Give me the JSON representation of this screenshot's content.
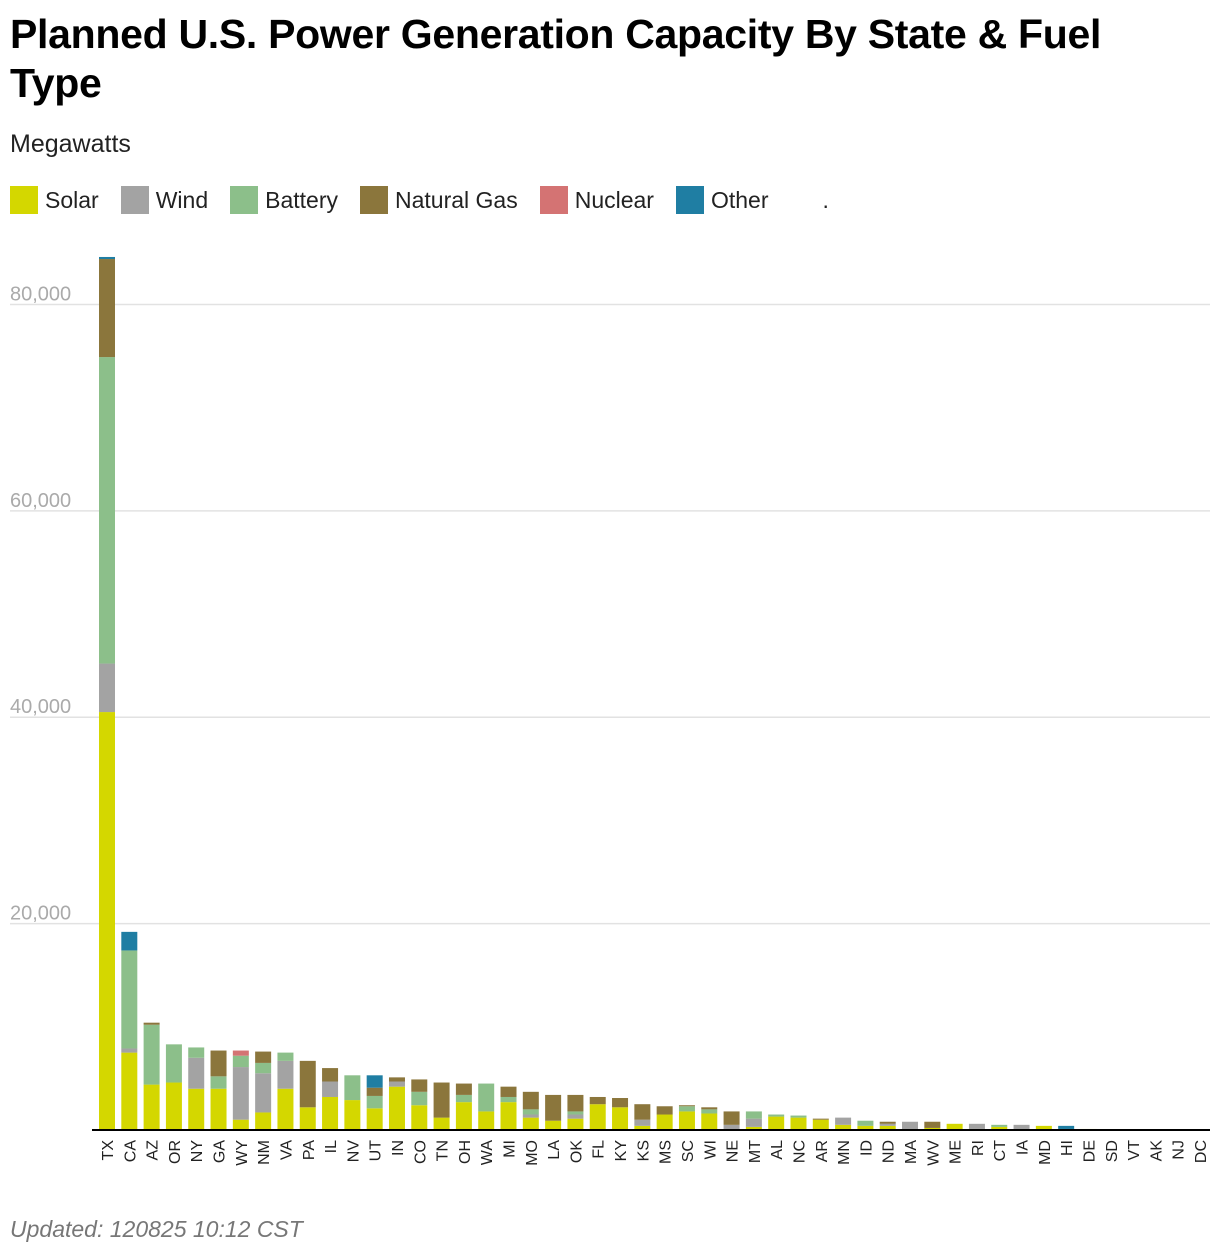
{
  "title": "Planned U.S. Power Generation Capacity By State & Fuel Type",
  "subtitle": "Megawatts",
  "footer": "Updated: 120825 10:12 CST",
  "legend_extra": ".",
  "chart_data": {
    "type": "bar",
    "stacked": true,
    "title": "Planned U.S. Power Generation Capacity By State & Fuel Type",
    "ylabel": "Megawatts",
    "xlabel": "",
    "ylim": [
      0,
      84500
    ],
    "yticks": [
      20000,
      40000,
      60000,
      80000
    ],
    "ytick_labels": [
      "20,000",
      "40,000",
      "60,000",
      "80,000"
    ],
    "grid": true,
    "legend_position": "top-left",
    "categories": [
      "TX",
      "CA",
      "AZ",
      "OR",
      "NY",
      "GA",
      "WY",
      "NM",
      "VA",
      "PA",
      "IL",
      "NV",
      "UT",
      "IN",
      "CO",
      "TN",
      "OH",
      "WA",
      "MI",
      "MO",
      "LA",
      "OK",
      "FL",
      "KY",
      "KS",
      "MS",
      "SC",
      "WI",
      "NE",
      "MT",
      "AL",
      "NC",
      "AR",
      "MN",
      "ID",
      "ND",
      "MA",
      "WV",
      "ME",
      "RI",
      "CT",
      "IA",
      "MD",
      "HI",
      "DE",
      "SD",
      "VT",
      "AK",
      "NJ",
      "DC"
    ],
    "series": [
      {
        "name": "Solar",
        "color": "#d4d700",
        "values": [
          40500,
          7500,
          4400,
          4600,
          4000,
          4000,
          1000,
          1700,
          4000,
          2200,
          3200,
          2900,
          2100,
          4200,
          2400,
          1200,
          2700,
          1800,
          2700,
          1200,
          900,
          1100,
          2500,
          2200,
          400,
          1500,
          1800,
          1600,
          0,
          300,
          1300,
          1200,
          1000,
          500,
          400,
          400,
          0,
          200,
          600,
          100,
          300,
          0,
          400,
          100,
          100,
          0,
          0,
          0,
          0,
          0
        ]
      },
      {
        "name": "Wind",
        "color": "#a3a3a3",
        "values": [
          4700,
          400,
          0,
          0,
          3000,
          0,
          5100,
          3800,
          2700,
          0,
          1500,
          0,
          0,
          500,
          0,
          0,
          0,
          0,
          0,
          300,
          0,
          400,
          0,
          0,
          600,
          0,
          0,
          0,
          500,
          800,
          0,
          0,
          0,
          700,
          0,
          200,
          800,
          0,
          0,
          500,
          0,
          500,
          0,
          0,
          0,
          0,
          0,
          0,
          0,
          0
        ]
      },
      {
        "name": "Battery",
        "color": "#8cbf8a",
        "values": [
          29700,
          9500,
          5800,
          3700,
          1000,
          1200,
          1100,
          1000,
          800,
          0,
          0,
          2400,
          1200,
          0,
          1300,
          0,
          700,
          2700,
          500,
          500,
          0,
          300,
          0,
          0,
          0,
          0,
          500,
          400,
          0,
          700,
          200,
          200,
          0,
          0,
          500,
          0,
          0,
          0,
          0,
          0,
          200,
          0,
          0,
          0,
          0,
          0,
          0,
          0,
          0,
          0
        ]
      },
      {
        "name": "Natural Gas",
        "color": "#8b763c",
        "values": [
          9500,
          0,
          200,
          0,
          0,
          2500,
          0,
          1100,
          0,
          4500,
          1300,
          0,
          800,
          400,
          1200,
          3400,
          1100,
          0,
          1000,
          1700,
          2500,
          1600,
          700,
          900,
          1500,
          800,
          100,
          200,
          1300,
          0,
          0,
          0,
          100,
          0,
          0,
          200,
          0,
          600,
          0,
          0,
          0,
          0,
          0,
          0,
          0,
          0,
          0,
          0,
          0,
          0
        ]
      },
      {
        "name": "Nuclear",
        "color": "#d47373",
        "values": [
          0,
          0,
          0,
          0,
          0,
          0,
          500,
          0,
          0,
          0,
          0,
          0,
          0,
          0,
          0,
          0,
          0,
          0,
          0,
          0,
          0,
          0,
          0,
          0,
          0,
          0,
          0,
          0,
          0,
          0,
          0,
          0,
          0,
          0,
          0,
          0,
          0,
          0,
          0,
          0,
          0,
          0,
          0,
          0,
          0,
          0,
          0,
          0,
          0,
          0
        ]
      },
      {
        "name": "Other",
        "color": "#1f7ea3",
        "values": [
          200,
          1800,
          0,
          0,
          0,
          0,
          0,
          0,
          0,
          0,
          0,
          0,
          1200,
          0,
          0,
          0,
          0,
          0,
          0,
          0,
          0,
          0,
          0,
          0,
          0,
          0,
          0,
          0,
          0,
          0,
          0,
          0,
          0,
          0,
          0,
          0,
          0,
          0,
          0,
          0,
          0,
          0,
          0,
          300,
          0,
          0,
          0,
          0,
          0,
          0
        ]
      }
    ]
  }
}
